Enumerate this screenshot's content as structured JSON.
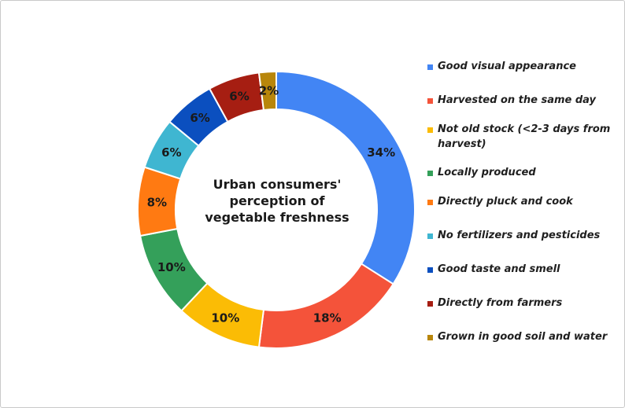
{
  "chart_data": {
    "type": "pie",
    "variant": "donut",
    "title": "Urban consumers' perception of vegetable freshness",
    "legend_position": "right",
    "series": [
      {
        "name": "Good visual appearance",
        "value": 34,
        "label": "34%",
        "color": "#4285f4"
      },
      {
        "name": "Harvested on the same day",
        "value": 18,
        "label": "18%",
        "color": "#f4533a"
      },
      {
        "name": "Not old stock (<2-3 days from harvest)",
        "value": 10,
        "label": "10%",
        "color": "#fbbc05"
      },
      {
        "name": "Locally produced",
        "value": 10,
        "label": "10%",
        "color": "#34a05a"
      },
      {
        "name": "Directly pluck and cook",
        "value": 8,
        "label": "8%",
        "color": "#ff7a12"
      },
      {
        "name": "No fertilizers and pesticides",
        "value": 6,
        "label": "6%",
        "color": "#3fb6d1"
      },
      {
        "name": "Good taste and smell",
        "value": 6,
        "label": "6%",
        "color": "#0b4fbf"
      },
      {
        "name": "Directly from farmers",
        "value": 6,
        "label": "6%",
        "color": "#a61e12"
      },
      {
        "name": "Grown in good soil and water",
        "value": 2,
        "label": "2%",
        "color": "#b8860b"
      }
    ]
  }
}
